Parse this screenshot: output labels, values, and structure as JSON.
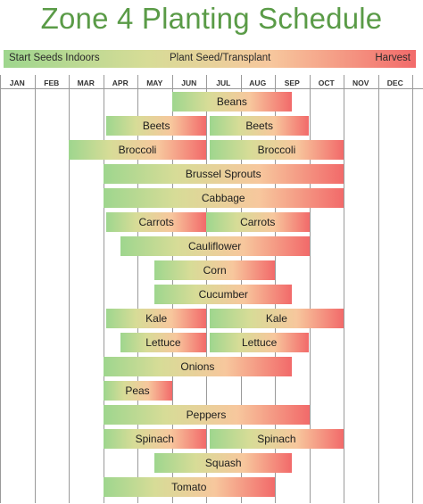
{
  "title": "Zone 4 Planting Schedule",
  "legend": {
    "start": "Start Seeds Indoors",
    "middle": "Plant Seed/Transplant",
    "end": "Harvest"
  },
  "colors": {
    "title": "#5a9b47",
    "start_green": "#9ed68e",
    "mid_yellow": "#d7dc97",
    "mid_orange": "#f7c79d",
    "harvest_red": "#f26a6a"
  },
  "chart_data": {
    "type": "gantt",
    "title": "Zone 4 Planting Schedule",
    "months": [
      "JAN",
      "FEB",
      "MAR",
      "APR",
      "MAY",
      "JUN",
      "JUL",
      "AUG",
      "SEP",
      "OCT",
      "NOV",
      "DEC"
    ],
    "rows": [
      {
        "crop": "Beans",
        "bars": [
          {
            "label": "Beans",
            "start": 5.0,
            "end": 8.5
          }
        ]
      },
      {
        "crop": "Beets",
        "bars": [
          {
            "label": "Beets",
            "start": 3.1,
            "end": 6.0
          },
          {
            "label": "Beets",
            "start": 6.1,
            "end": 9.0
          }
        ]
      },
      {
        "crop": "Broccoli",
        "bars": [
          {
            "label": "Broccoli",
            "start": 2.0,
            "end": 6.0
          },
          {
            "label": "Broccoli",
            "start": 6.1,
            "end": 10.0
          }
        ]
      },
      {
        "crop": "Brussel Sprouts",
        "bars": [
          {
            "label": "Brussel Sprouts",
            "start": 3.0,
            "end": 10.0
          }
        ]
      },
      {
        "crop": "Cabbage",
        "bars": [
          {
            "label": "Cabbage",
            "start": 3.0,
            "end": 10.0
          }
        ]
      },
      {
        "crop": "Carrots",
        "bars": [
          {
            "label": "Carrots",
            "start": 3.1,
            "end": 6.0
          },
          {
            "label": "Carrots",
            "start": 6.0,
            "end": 9.0
          }
        ]
      },
      {
        "crop": "Cauliflower",
        "bars": [
          {
            "label": "Cauliflower",
            "start": 3.5,
            "end": 9.0
          }
        ]
      },
      {
        "crop": "Corn",
        "bars": [
          {
            "label": "Corn",
            "start": 4.5,
            "end": 8.0
          }
        ]
      },
      {
        "crop": "Cucumber",
        "bars": [
          {
            "label": "Cucumber",
            "start": 4.5,
            "end": 8.5
          }
        ]
      },
      {
        "crop": "Kale",
        "bars": [
          {
            "label": "Kale",
            "start": 3.1,
            "end": 6.0
          },
          {
            "label": "Kale",
            "start": 6.1,
            "end": 10.0
          }
        ]
      },
      {
        "crop": "Lettuce",
        "bars": [
          {
            "label": "Lettuce",
            "start": 3.5,
            "end": 6.0
          },
          {
            "label": "Lettuce",
            "start": 6.1,
            "end": 9.0
          }
        ]
      },
      {
        "crop": "Onions",
        "bars": [
          {
            "label": "Onions",
            "start": 3.0,
            "end": 8.5
          }
        ]
      },
      {
        "crop": "Peas",
        "bars": [
          {
            "label": "Peas",
            "start": 3.0,
            "end": 5.0
          }
        ]
      },
      {
        "crop": "Peppers",
        "bars": [
          {
            "label": "Peppers",
            "start": 3.0,
            "end": 9.0
          }
        ]
      },
      {
        "crop": "Spinach",
        "bars": [
          {
            "label": "Spinach",
            "start": 3.0,
            "end": 6.0
          },
          {
            "label": "Spinach",
            "start": 6.1,
            "end": 10.0
          }
        ]
      },
      {
        "crop": "Squash",
        "bars": [
          {
            "label": "Squash",
            "start": 4.5,
            "end": 8.5
          }
        ]
      },
      {
        "crop": "Tomato",
        "bars": [
          {
            "label": "Tomato",
            "start": 3.0,
            "end": 8.0
          }
        ]
      }
    ]
  }
}
